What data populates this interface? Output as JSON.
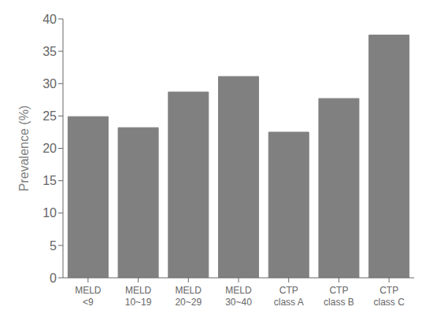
{
  "chart_data": {
    "type": "bar",
    "categories": [
      "MELD\n<9",
      "MELD\n10~19",
      "MELD\n20~29",
      "MELD\n30~40",
      "CTP\nclass A",
      "CTP\nclass B",
      "CTP\nclass C"
    ],
    "values": [
      24.9,
      23.2,
      28.7,
      31.1,
      22.5,
      27.7,
      37.5
    ],
    "color": "#808080",
    "ylabel": "Prevalence (%)",
    "ylim": [
      0,
      40
    ],
    "yticks": [
      0,
      5,
      10,
      15,
      20,
      25,
      30,
      35,
      40
    ],
    "grid": false
  }
}
